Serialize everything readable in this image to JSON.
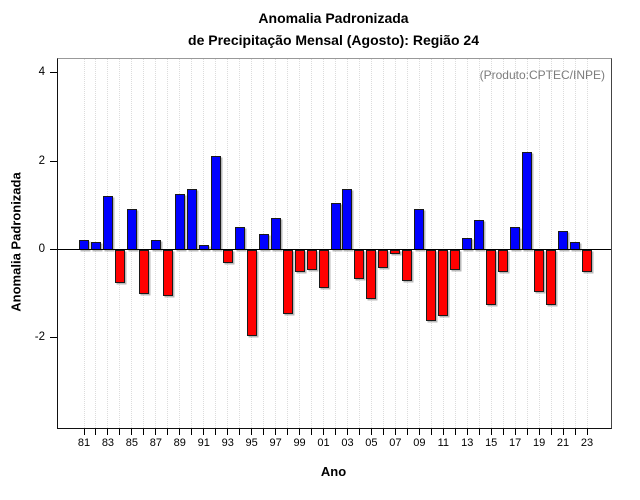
{
  "title": {
    "line1": "Anomalia Padronizada",
    "line2": "de Precipitação Mensal (Agosto): Região 24"
  },
  "annotation": {
    "text": "(Produto:CPTEC/INPE)",
    "color": "#7c7c7c"
  },
  "chart_data": {
    "type": "bar",
    "title": "Anomalia Padronizada de Precipitação Mensal (Agosto): Região 24",
    "xlabel": "Ano",
    "ylabel": "Anomalia Padronizada",
    "ylim": [
      -4.05,
      4.3
    ],
    "yticks": [
      4,
      2,
      0,
      -2
    ],
    "x_tick_labels": [
      "81",
      "83",
      "85",
      "87",
      "89",
      "91",
      "93",
      "95",
      "97",
      "99",
      "01",
      "03",
      "05",
      "07",
      "09",
      "11",
      "13",
      "15",
      "17",
      "19",
      "21",
      "23"
    ],
    "grid": "vertical-dotted-per-year",
    "legend": "none",
    "colors": {
      "positive": "#0000ff",
      "negative": "#ff0000",
      "bar_border": "#1a1a1a",
      "zero_line": "#000000",
      "grid": "#dcdcdc"
    },
    "years": [
      "81",
      "82",
      "83",
      "84",
      "85",
      "86",
      "87",
      "88",
      "89",
      "90",
      "91",
      "92",
      "93",
      "94",
      "95",
      "96",
      "97",
      "98",
      "99",
      "00",
      "01",
      "02",
      "03",
      "04",
      "05",
      "06",
      "07",
      "08",
      "09",
      "10",
      "11",
      "12",
      "13",
      "14",
      "15",
      "16",
      "17",
      "18",
      "19",
      "20",
      "21",
      "22",
      "23"
    ],
    "values": [
      0.2,
      0.15,
      1.2,
      -0.75,
      0.9,
      -1.0,
      0.2,
      -1.05,
      1.25,
      1.35,
      0.1,
      2.1,
      -0.3,
      0.5,
      -1.95,
      0.35,
      0.7,
      -1.45,
      -0.5,
      -0.45,
      -0.85,
      1.05,
      1.35,
      -0.65,
      -1.1,
      -0.4,
      -0.1,
      -0.7,
      0.9,
      -1.6,
      -1.5,
      -0.45,
      0.25,
      0.65,
      -1.25,
      -0.5,
      0.5,
      2.2,
      -0.95,
      -1.25,
      0.4,
      0.15,
      -0.5
    ]
  }
}
